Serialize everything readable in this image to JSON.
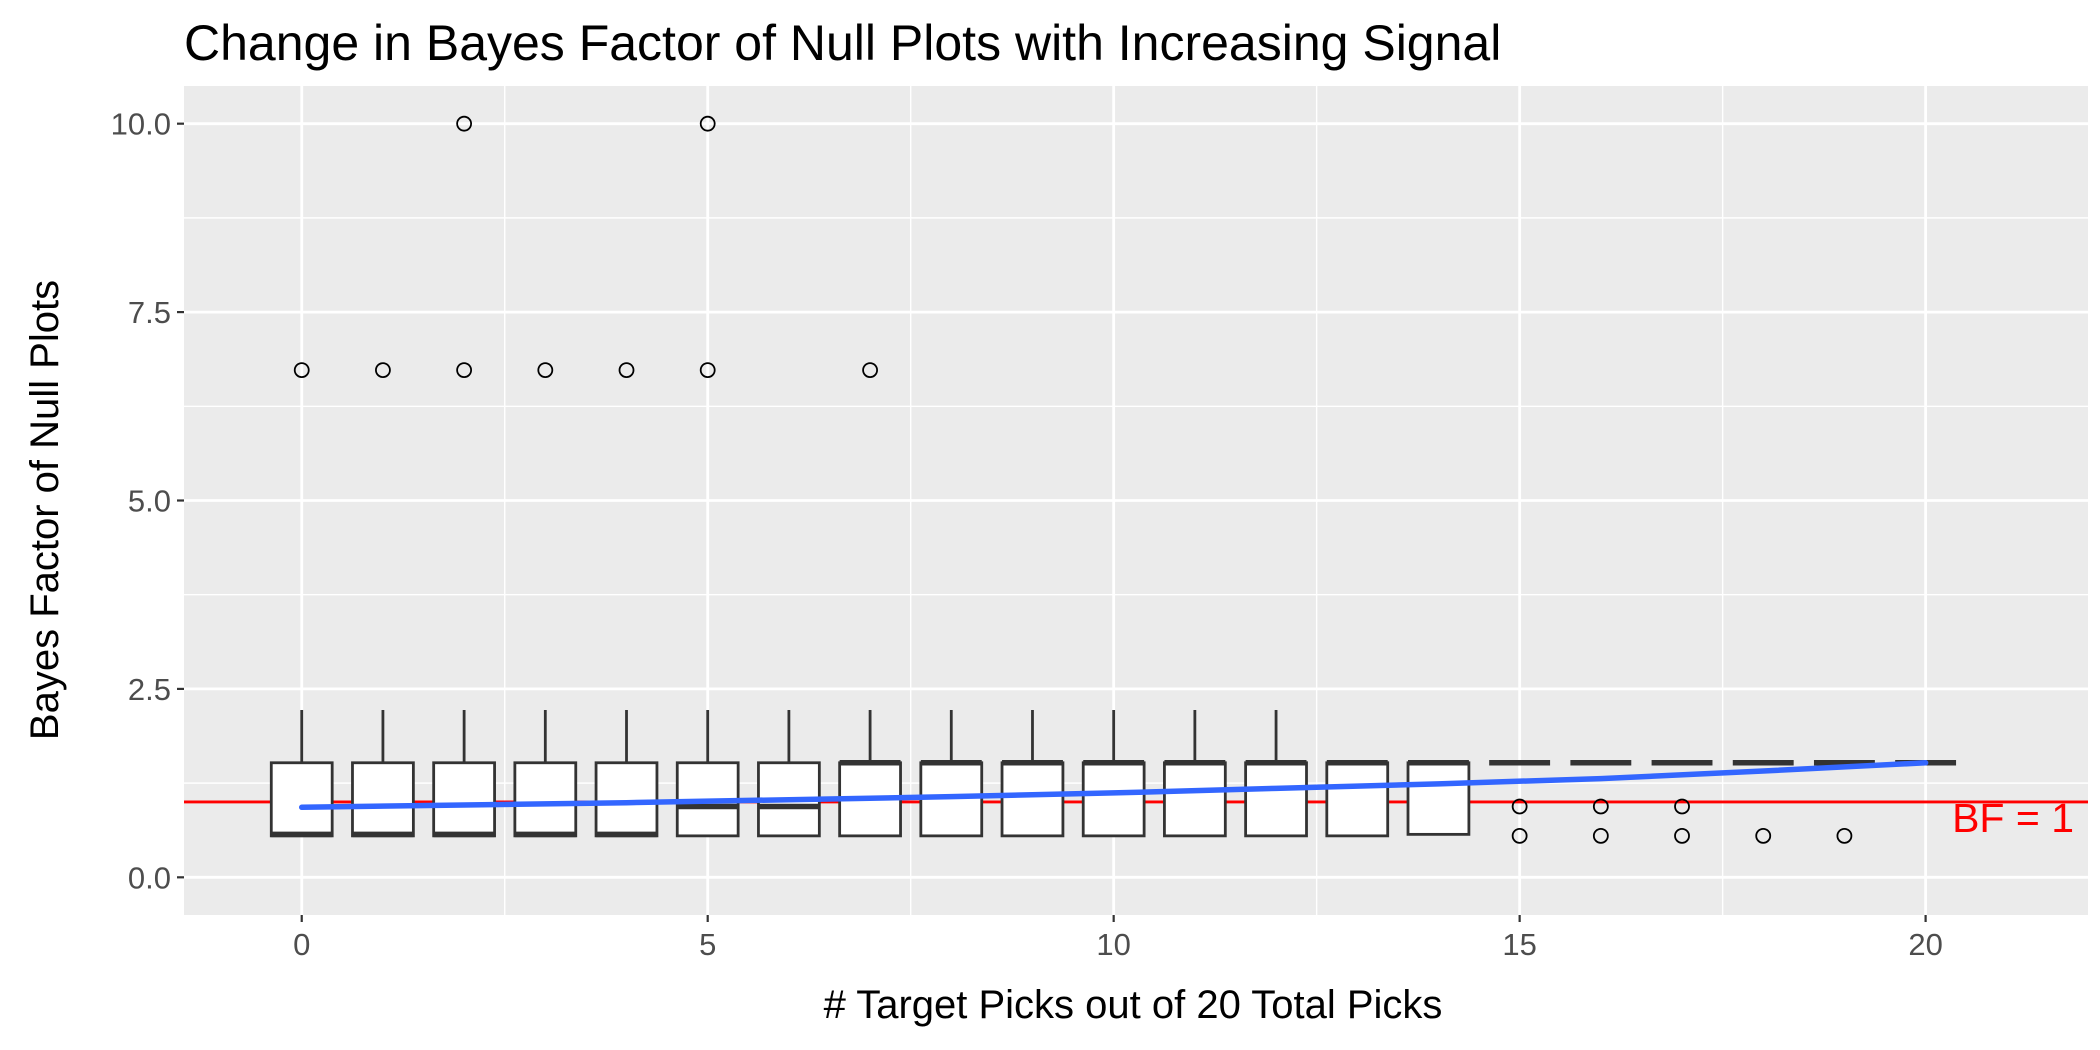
{
  "chart_data": {
    "type": "boxplot",
    "title": "Change in Bayes Factor of Null Plots with Increasing Signal",
    "xlabel": "# Target Picks out of 20 Total Picks",
    "ylabel": "Bayes Factor of Null Plots",
    "xlim": [
      -1.45,
      22
    ],
    "ylim": [
      -0.5,
      10.5
    ],
    "x_ticks": [
      0,
      5,
      10,
      15,
      20
    ],
    "x_tick_labels": [
      "0",
      "5",
      "10",
      "15",
      "20"
    ],
    "y_ticks": [
      0,
      2.5,
      5,
      7.5,
      10
    ],
    "y_tick_labels": [
      "0.0",
      "2.5",
      "5.0",
      "7.5",
      "10.0"
    ],
    "grid": true,
    "colors": {
      "panel": "#ebebeb",
      "grid": "#ffffff",
      "box_stroke": "#333333",
      "box_fill": "#ffffff",
      "reference_line": "#ff0000",
      "trend_line": "#3366ff",
      "outlier": "#000000"
    },
    "boxes": [
      {
        "x": 0,
        "q1": 0.55,
        "median": 0.57,
        "q3": 1.52,
        "whisker_low": 0.55,
        "whisker_high": 2.22
      },
      {
        "x": 1,
        "q1": 0.55,
        "median": 0.57,
        "q3": 1.52,
        "whisker_low": 0.55,
        "whisker_high": 2.22
      },
      {
        "x": 2,
        "q1": 0.55,
        "median": 0.57,
        "q3": 1.52,
        "whisker_low": 0.55,
        "whisker_high": 2.22
      },
      {
        "x": 3,
        "q1": 0.55,
        "median": 0.57,
        "q3": 1.52,
        "whisker_low": 0.55,
        "whisker_high": 2.22
      },
      {
        "x": 4,
        "q1": 0.55,
        "median": 0.57,
        "q3": 1.52,
        "whisker_low": 0.55,
        "whisker_high": 2.22
      },
      {
        "x": 5,
        "q1": 0.55,
        "median": 0.94,
        "q3": 1.52,
        "whisker_low": 0.55,
        "whisker_high": 2.22
      },
      {
        "x": 6,
        "q1": 0.55,
        "median": 0.94,
        "q3": 1.52,
        "whisker_low": 0.55,
        "whisker_high": 2.22
      },
      {
        "x": 7,
        "q1": 0.55,
        "median": 1.52,
        "q3": 1.52,
        "whisker_low": 0.55,
        "whisker_high": 2.22
      },
      {
        "x": 8,
        "q1": 0.55,
        "median": 1.52,
        "q3": 1.52,
        "whisker_low": 0.55,
        "whisker_high": 2.22
      },
      {
        "x": 9,
        "q1": 0.55,
        "median": 1.52,
        "q3": 1.52,
        "whisker_low": 0.55,
        "whisker_high": 2.22
      },
      {
        "x": 10,
        "q1": 0.55,
        "median": 1.52,
        "q3": 1.52,
        "whisker_low": 0.55,
        "whisker_high": 2.22
      },
      {
        "x": 11,
        "q1": 0.55,
        "median": 1.52,
        "q3": 1.52,
        "whisker_low": 0.55,
        "whisker_high": 2.22
      },
      {
        "x": 12,
        "q1": 0.55,
        "median": 1.52,
        "q3": 1.52,
        "whisker_low": 0.55,
        "whisker_high": 2.22
      },
      {
        "x": 13,
        "q1": 0.55,
        "median": 1.52,
        "q3": 1.52,
        "whisker_low": 0.55,
        "whisker_high": 1.52
      },
      {
        "x": 14,
        "q1": 0.57,
        "median": 1.52,
        "q3": 1.52,
        "whisker_low": 0.57,
        "whisker_high": 1.52
      },
      {
        "x": 15,
        "q1": 1.52,
        "median": 1.52,
        "q3": 1.52,
        "whisker_low": 1.52,
        "whisker_high": 1.52
      },
      {
        "x": 16,
        "q1": 1.52,
        "median": 1.52,
        "q3": 1.52,
        "whisker_low": 1.52,
        "whisker_high": 1.52
      },
      {
        "x": 17,
        "q1": 1.52,
        "median": 1.52,
        "q3": 1.52,
        "whisker_low": 1.52,
        "whisker_high": 1.52
      },
      {
        "x": 18,
        "q1": 1.52,
        "median": 1.52,
        "q3": 1.52,
        "whisker_low": 1.52,
        "whisker_high": 1.52
      },
      {
        "x": 19,
        "q1": 1.52,
        "median": 1.52,
        "q3": 1.52,
        "whisker_low": 1.52,
        "whisker_high": 1.52
      },
      {
        "x": 20,
        "q1": 1.52,
        "median": 1.52,
        "q3": 1.52,
        "whisker_low": 1.52,
        "whisker_high": 1.52
      }
    ],
    "outliers": [
      {
        "x": 0,
        "y": 6.73
      },
      {
        "x": 1,
        "y": 6.73
      },
      {
        "x": 2,
        "y": 6.73
      },
      {
        "x": 2,
        "y": 10.0
      },
      {
        "x": 3,
        "y": 6.73
      },
      {
        "x": 4,
        "y": 6.73
      },
      {
        "x": 5,
        "y": 6.73
      },
      {
        "x": 5,
        "y": 10.0
      },
      {
        "x": 7,
        "y": 6.73
      },
      {
        "x": 15,
        "y": 0.94
      },
      {
        "x": 15,
        "y": 0.55
      },
      {
        "x": 16,
        "y": 0.94
      },
      {
        "x": 16,
        "y": 0.55
      },
      {
        "x": 17,
        "y": 0.94
      },
      {
        "x": 17,
        "y": 0.55
      },
      {
        "x": 18,
        "y": 0.55
      },
      {
        "x": 19,
        "y": 0.55
      }
    ],
    "trend_line": {
      "x": [
        0,
        2,
        4,
        6,
        8,
        10,
        12,
        14,
        16,
        18,
        20
      ],
      "y": [
        0.93,
        0.96,
        0.99,
        1.03,
        1.07,
        1.12,
        1.18,
        1.24,
        1.31,
        1.41,
        1.52
      ]
    },
    "reference_line": {
      "y": 1.0,
      "label": "BF = 1"
    }
  }
}
